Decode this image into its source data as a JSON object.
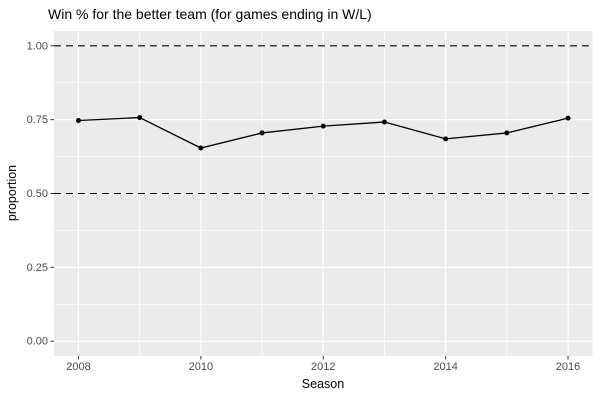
{
  "chart_data": {
    "type": "line",
    "title": "Win % for the better team (for games ending in W/L)",
    "xlabel": "Season",
    "ylabel": "proportion",
    "x": [
      2008,
      2009,
      2010,
      2011,
      2012,
      2013,
      2014,
      2015,
      2016
    ],
    "y": [
      0.747,
      0.757,
      0.654,
      0.705,
      0.728,
      0.742,
      0.685,
      0.705,
      0.755
    ],
    "xlim": [
      2007.6,
      2016.4
    ],
    "ylim": [
      -0.05,
      1.05
    ],
    "x_major_ticks": [
      2008,
      2010,
      2012,
      2014,
      2016
    ],
    "x_tick_labels": [
      "2008",
      "2010",
      "2012",
      "2014",
      "2016"
    ],
    "x_minor_ticks": [
      2009,
      2011,
      2013,
      2015
    ],
    "y_major_ticks": [
      0,
      0.25,
      0.5,
      0.75,
      1
    ],
    "y_tick_labels": [
      "0.00",
      "0.25",
      "0.50",
      "0.75",
      "1.00"
    ],
    "y_minor_ticks": [
      0.125,
      0.375,
      0.625,
      0.875
    ],
    "reference_lines": [
      {
        "y": 0.5,
        "style": "dashed"
      },
      {
        "y": 1.0,
        "style": "dashed"
      }
    ],
    "grid": true,
    "legend": "none"
  },
  "colors": {
    "panel_bg": "#EBEBEB",
    "grid": "#FFFFFF",
    "series_line": "#000000",
    "point": "#000000",
    "reference_line": "#000000",
    "tick_mark": "#333333",
    "tick_text": "#4D4D4D",
    "title_text": "#000000"
  }
}
